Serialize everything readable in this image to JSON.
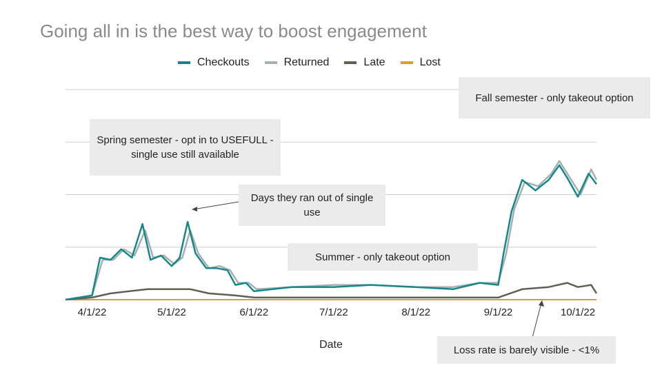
{
  "slide_title": "Going all in is the best way to boost engagement",
  "callouts": {
    "spring": "Spring semester - opt in to USEFULL - single use still available",
    "ran_out": "Days they ran out of single use",
    "summer": "Summer - only takeout option",
    "fall": "Fall semester - only takeout option",
    "loss": "Loss rate is barely visible - <1%"
  },
  "chart_data": {
    "type": "line",
    "title": "Going all in is the best way to boost engagement",
    "xlabel": "Date",
    "ylabel": "",
    "x_ticks": [
      "4/1/22",
      "5/1/22",
      "6/1/22",
      "7/1/22",
      "8/1/22",
      "9/1/22",
      "10/1/22"
    ],
    "x_range": [
      "3/22/22",
      "10/8/22"
    ],
    "y_ticks_shown": false,
    "grid": true,
    "legend_position": "top",
    "series_colors": {
      "Checkouts": "#17868a",
      "Returned": "#a2b1ae",
      "Late": "#5e6052",
      "Lost": "#d6a02c"
    },
    "series": [
      {
        "name": "Checkouts",
        "values_relative_scale": "0-100",
        "points": [
          [
            "3/22/22",
            0
          ],
          [
            "4/1/22",
            2
          ],
          [
            "4/4/22",
            20
          ],
          [
            "4/8/22",
            19
          ],
          [
            "4/12/22",
            24
          ],
          [
            "4/16/22",
            20
          ],
          [
            "4/20/22",
            36
          ],
          [
            "4/23/22",
            19
          ],
          [
            "4/27/22",
            21
          ],
          [
            "5/1/22",
            16
          ],
          [
            "5/4/22",
            20
          ],
          [
            "5/7/22",
            37
          ],
          [
            "5/10/22",
            22
          ],
          [
            "5/14/22",
            15
          ],
          [
            "5/18/22",
            15
          ],
          [
            "5/22/22",
            14
          ],
          [
            "5/25/22",
            7
          ],
          [
            "5/29/22",
            8
          ],
          [
            "6/1/22",
            4
          ],
          [
            "6/15/22",
            6
          ],
          [
            "7/1/22",
            6
          ],
          [
            "7/15/22",
            7
          ],
          [
            "8/1/22",
            6
          ],
          [
            "8/15/22",
            5
          ],
          [
            "8/25/22",
            8
          ],
          [
            "9/1/22",
            7
          ],
          [
            "9/3/22",
            22
          ],
          [
            "9/6/22",
            42
          ],
          [
            "9/10/22",
            57
          ],
          [
            "9/15/22",
            52
          ],
          [
            "9/20/22",
            57
          ],
          [
            "9/24/22",
            64
          ],
          [
            "9/27/22",
            58
          ],
          [
            "10/1/22",
            49
          ],
          [
            "10/5/22",
            60
          ],
          [
            "10/8/22",
            55
          ]
        ]
      },
      {
        "name": "Returned",
        "values_relative_scale": "0-100",
        "points": [
          [
            "3/22/22",
            0
          ],
          [
            "4/1/22",
            2
          ],
          [
            "4/5/22",
            19
          ],
          [
            "4/9/22",
            19
          ],
          [
            "4/13/22",
            24
          ],
          [
            "4/17/22",
            21
          ],
          [
            "4/21/22",
            33
          ],
          [
            "4/24/22",
            20
          ],
          [
            "4/28/22",
            21
          ],
          [
            "5/2/22",
            17
          ],
          [
            "5/5/22",
            20
          ],
          [
            "5/8/22",
            33
          ],
          [
            "5/11/22",
            22
          ],
          [
            "5/15/22",
            15
          ],
          [
            "5/19/22",
            16
          ],
          [
            "5/23/22",
            14
          ],
          [
            "5/26/22",
            8
          ],
          [
            "5/30/22",
            8
          ],
          [
            "6/2/22",
            5
          ],
          [
            "6/15/22",
            6
          ],
          [
            "7/1/22",
            7
          ],
          [
            "7/15/22",
            7
          ],
          [
            "8/1/22",
            6
          ],
          [
            "8/15/22",
            6
          ],
          [
            "8/25/22",
            8
          ],
          [
            "9/1/22",
            8
          ],
          [
            "9/4/22",
            22
          ],
          [
            "9/7/22",
            43
          ],
          [
            "9/11/22",
            56
          ],
          [
            "9/16/22",
            54
          ],
          [
            "9/21/22",
            60
          ],
          [
            "9/24/22",
            66
          ],
          [
            "9/28/22",
            58
          ],
          [
            "10/2/22",
            50
          ],
          [
            "10/6/22",
            62
          ],
          [
            "10/8/22",
            57
          ]
        ]
      },
      {
        "name": "Late",
        "values_relative_scale": "0-100",
        "points": [
          [
            "3/22/22",
            0
          ],
          [
            "4/1/22",
            1
          ],
          [
            "4/8/22",
            3
          ],
          [
            "4/15/22",
            4
          ],
          [
            "4/22/22",
            5
          ],
          [
            "5/1/22",
            5
          ],
          [
            "5/8/22",
            5
          ],
          [
            "5/15/22",
            3
          ],
          [
            "5/25/22",
            2
          ],
          [
            "6/1/22",
            1
          ],
          [
            "7/1/22",
            1
          ],
          [
            "8/1/22",
            1
          ],
          [
            "8/25/22",
            1
          ],
          [
            "9/1/22",
            1
          ],
          [
            "9/10/22",
            5
          ],
          [
            "9/20/22",
            6
          ],
          [
            "9/27/22",
            8
          ],
          [
            "10/1/22",
            6
          ],
          [
            "10/6/22",
            7
          ],
          [
            "10/8/22",
            3
          ]
        ]
      },
      {
        "name": "Lost",
        "values_relative_scale": "0-100",
        "points": [
          [
            "3/22/22",
            0
          ],
          [
            "10/8/22",
            0
          ]
        ]
      }
    ]
  }
}
